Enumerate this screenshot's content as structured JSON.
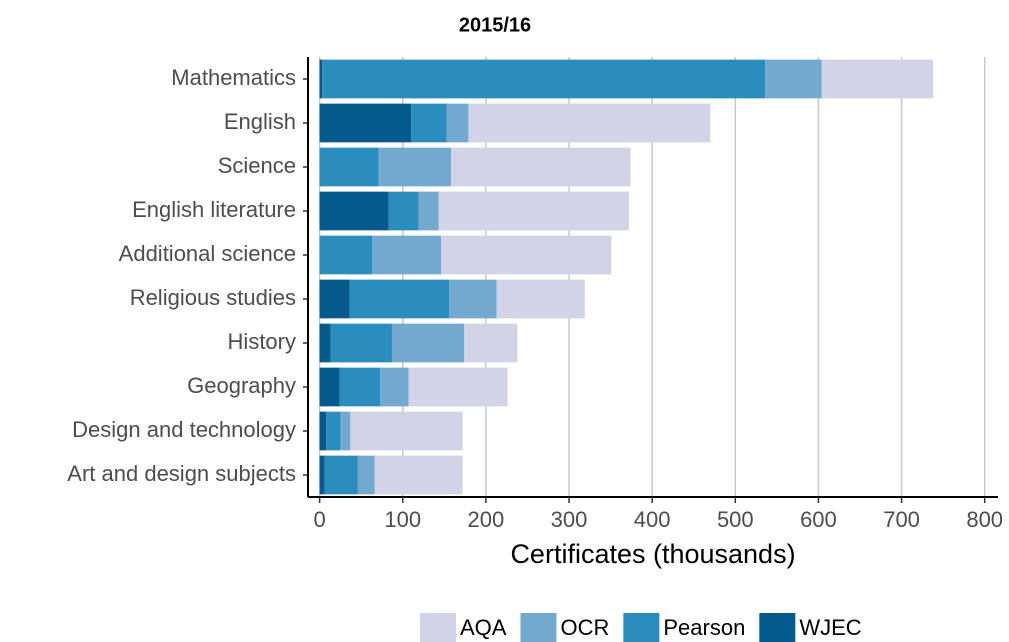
{
  "chart_data": {
    "type": "bar",
    "orientation": "horizontal",
    "stacked": true,
    "title": "2015/16",
    "x_label": "Certificates (thousands)",
    "categories": [
      "Mathematics",
      "English",
      "Science",
      "English literature",
      "Additional science",
      "Religious studies",
      "History",
      "Geography",
      "Design and technology",
      "Art and design subjects"
    ],
    "series": [
      {
        "name": "AQA",
        "color": "#d3d3e8",
        "values": [
          134,
          291,
          216,
          229,
          205,
          106,
          64,
          119,
          135,
          106
        ]
      },
      {
        "name": "OCR",
        "color": "#74a9cf",
        "values": [
          68,
          26,
          87,
          24,
          83,
          57,
          87,
          34,
          12,
          20
        ]
      },
      {
        "name": "Pearson",
        "color": "#2b8cbe",
        "values": [
          533,
          43,
          71,
          36,
          63,
          120,
          74,
          49,
          17,
          40
        ]
      },
      {
        "name": "WJEC",
        "color": "#045a8d",
        "values": [
          3,
          110,
          0,
          83,
          0,
          36,
          13,
          24,
          8,
          6
        ]
      }
    ],
    "xlim": [
      -14,
      816
    ],
    "xticks": [
      0,
      100,
      200,
      300,
      400,
      500,
      600,
      700,
      800
    ],
    "grid": true,
    "legend": "bottom"
  }
}
